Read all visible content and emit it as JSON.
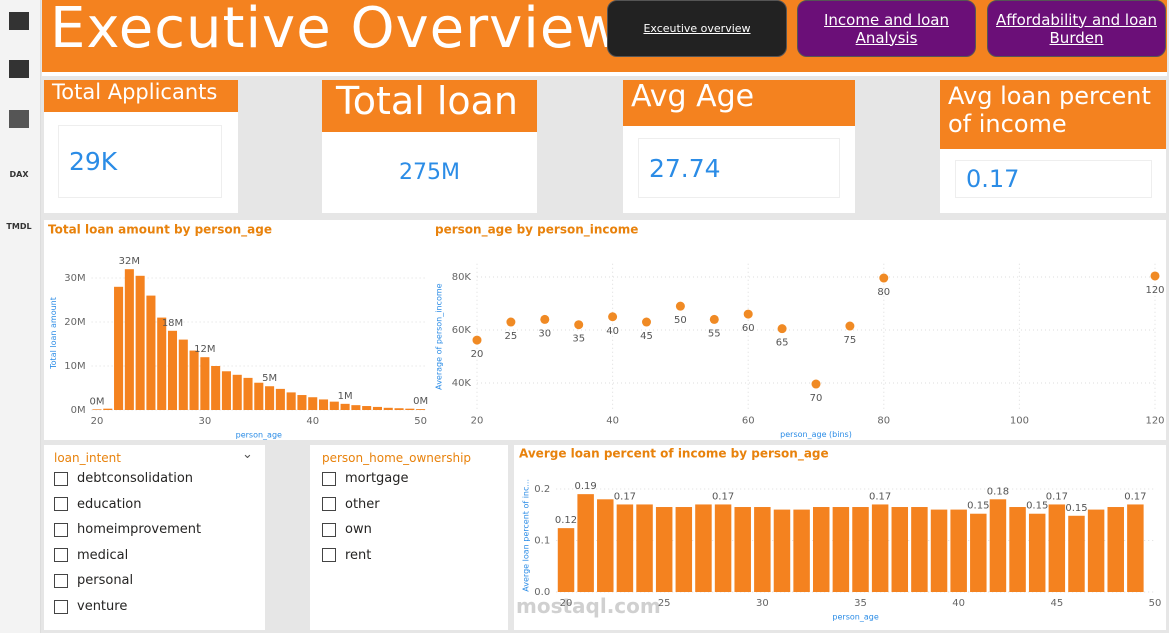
{
  "sidebar": {
    "icons": [
      "DAX",
      "TMDL"
    ]
  },
  "header": {
    "title": "Executive Overview",
    "buttons": [
      "Exceutive overview",
      "Income and loan Analysis",
      "Affordability and loan Burden"
    ]
  },
  "kpis": [
    {
      "label": "Total Applicants",
      "value": "29K"
    },
    {
      "label": "Total loan",
      "value": "275M"
    },
    {
      "label": "Avg Age",
      "value": "27.74"
    },
    {
      "label": "Avg loan percent of income",
      "value": "0.17"
    }
  ],
  "slicers": [
    {
      "title": "loan_intent",
      "options": [
        "debtconsolidation",
        "education",
        "homeimprovement",
        "medical",
        "personal",
        "venture"
      ]
    },
    {
      "title": "person_home_ownership",
      "options": [
        "mortgage",
        "other",
        "own",
        "rent"
      ]
    }
  ],
  "watermark": "mostaql.com",
  "chart_data": [
    {
      "type": "bar",
      "title": "Total loan amount by person_age",
      "x_label": "person_age",
      "y_label": "Total loan amount",
      "color": "#f4821f",
      "grid": true,
      "x": [
        20,
        21,
        22,
        23,
        24,
        25,
        26,
        27,
        28,
        29,
        30,
        31,
        32,
        33,
        34,
        35,
        36,
        37,
        38,
        39,
        40,
        41,
        42,
        43,
        44,
        45,
        46,
        47,
        48,
        49,
        50
      ],
      "values": [
        150000,
        300000,
        28000000,
        32000000,
        30500000,
        26000000,
        21000000,
        18000000,
        16000000,
        13500000,
        12000000,
        10000000,
        8800000,
        8000000,
        7300000,
        6200000,
        5400000,
        4800000,
        4000000,
        3400000,
        2900000,
        2400000,
        1900000,
        1400000,
        1100000,
        900000,
        700000,
        500000,
        400000,
        300000,
        200000
      ],
      "value_labels": [
        "0M",
        null,
        null,
        "32M",
        null,
        null,
        null,
        "18M",
        null,
        null,
        "12M",
        null,
        null,
        null,
        null,
        null,
        "5M",
        null,
        null,
        null,
        null,
        null,
        null,
        "1M",
        null,
        null,
        null,
        null,
        null,
        null,
        "0M"
      ],
      "xlim": [
        19.5,
        50.5
      ],
      "xticks": [
        20,
        30,
        40,
        50
      ],
      "ylim": [
        0,
        35000000
      ],
      "yticks": [
        {
          "value": 0,
          "label": "0M"
        },
        {
          "value": 10000000,
          "label": "10M"
        },
        {
          "value": 20000000,
          "label": "20M"
        },
        {
          "value": 30000000,
          "label": "30M"
        }
      ]
    },
    {
      "type": "scatter",
      "title": "person_age by person_income",
      "x_label": "person_age (bins)",
      "y_label": "Average of person_income",
      "color": "#f08a24",
      "grid": true,
      "x": [
        20,
        25,
        30,
        35,
        40,
        45,
        50,
        55,
        60,
        65,
        70,
        75,
        80,
        120
      ],
      "values": [
        56200,
        63000,
        64000,
        62000,
        65000,
        63000,
        69000,
        64000,
        66000,
        60500,
        39600,
        61500,
        79600,
        80400
      ],
      "xlim": [
        20,
        120
      ],
      "xticks": [
        20,
        40,
        60,
        80,
        100,
        120
      ],
      "ylim": [
        30000,
        85000
      ],
      "yticks": [
        {
          "value": 40000,
          "label": "40K"
        },
        {
          "value": 60000,
          "label": "60K"
        },
        {
          "value": 80000,
          "label": "80K"
        }
      ]
    },
    {
      "type": "bar",
      "title": "Averge loan percent of income by person_age",
      "x_label": "person_age",
      "y_label": "Averge loan percent of inc...",
      "color": "#f4821f",
      "grid": true,
      "x": [
        20,
        21,
        22,
        23,
        24,
        25,
        26,
        27,
        28,
        29,
        30,
        31,
        32,
        33,
        34,
        35,
        36,
        37,
        38,
        39,
        40,
        41,
        42,
        43,
        44,
        45,
        46,
        47,
        48,
        49
      ],
      "values": [
        0.124,
        0.19,
        0.18,
        0.17,
        0.17,
        0.165,
        0.165,
        0.17,
        0.17,
        0.165,
        0.165,
        0.16,
        0.16,
        0.165,
        0.165,
        0.165,
        0.17,
        0.165,
        0.165,
        0.16,
        0.16,
        0.152,
        0.18,
        0.165,
        0.152,
        0.17,
        0.148,
        0.16,
        0.165,
        0.17
      ],
      "value_labels": [
        "0.12",
        "0.19",
        null,
        "0.17",
        null,
        null,
        null,
        null,
        "0.17",
        null,
        null,
        null,
        null,
        null,
        null,
        null,
        "0.17",
        null,
        null,
        null,
        null,
        "0.15",
        "0.18",
        null,
        "0.15",
        "0.17",
        "0.15",
        null,
        null,
        "0.17"
      ],
      "xlim": [
        19.5,
        50
      ],
      "xticks": [
        20,
        25,
        30,
        35,
        40,
        45,
        50
      ],
      "ylim": [
        0,
        0.22
      ],
      "yticks": [
        {
          "value": 0,
          "label": "0.0"
        },
        0.1,
        0.2
      ]
    }
  ]
}
